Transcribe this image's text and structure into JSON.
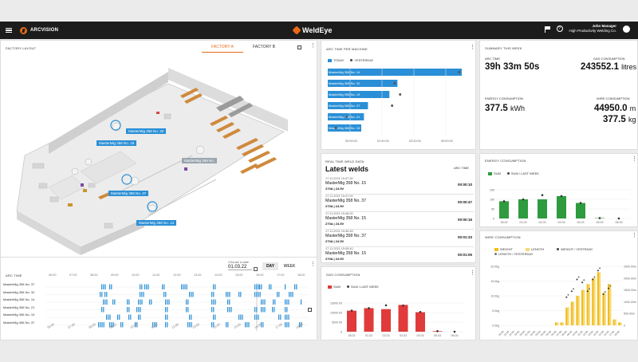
{
  "header": {
    "brand": "ARCVISION",
    "app_logo": "WeldEye",
    "user_name": "John Manager",
    "user_company": "High Productivity Welding Co.",
    "help_label": "?"
  },
  "factory": {
    "title": "FACTORY LAYOUT",
    "tabs": [
      "FACTORY A",
      "FACTORY B"
    ],
    "active_tab": "FACTORY A",
    "machine_labels": [
      "MasterMig 358 No. 32",
      "MasterMig 358 No. 19",
      "MasterMig 358 No.",
      "MasterMig 358 No. 37",
      "MasterMig 358 No. 14"
    ]
  },
  "arc_timeline": {
    "title": "ARC TIME",
    "date_label": "Choose a date",
    "date_value": "01.03.22",
    "day_btn": "DAY",
    "week_btn": "WEEK",
    "hours": [
      "06:00",
      "07:00",
      "08:00",
      "09:00",
      "10:00",
      "11:00",
      "12:00",
      "13:00",
      "14:00",
      "15:00",
      "16:00",
      "17:00",
      "18:00"
    ],
    "rows": [
      "MasterMig 358 No. 37",
      "MasterMig 358 No. 32",
      "MasterMig 358 No. 14",
      "MasterMig 358 No. 21",
      "MasterMig 358 No. 19",
      "MasterMig 358 No. 37"
    ],
    "accent": "#2a8fd6"
  },
  "arc_per_machine": {
    "title": "ARC TIME PER MACHINE",
    "legend": [
      "TODAY",
      "YESTERDAY"
    ],
    "machines": [
      "MasterMig 358 No. 14",
      "MasterMig 358 No. 32",
      "MasterMig 358 No. 19",
      "MasterMig 358 No. 37",
      "MasterMig 358 No. 21",
      "MasterMig 358 No. 15"
    ],
    "ticks": [
      "00:00:00",
      "01:40:00",
      "03:20:00",
      "05:00:00"
    ]
  },
  "latest_welds": {
    "section": "REAL TIME WELD DATA",
    "title": "Latest welds",
    "col": "ARC TIME",
    "rows": [
      {
        "time": "17.11.2021 15:47:30",
        "machine": "MasterMig 358 No. 15",
        "settings": "270A | 24.5V",
        "duration": "00:00:10"
      },
      {
        "time": "17.11.2021 15:47:00",
        "machine": "MasterMig 358 No. 37",
        "settings": "270A | 24.5V",
        "duration": "00:00:47"
      },
      {
        "time": "17.11.2021 15:46:00",
        "machine": "MasterMig 358 No. 15",
        "settings": "270A | 24.5V",
        "duration": "00:00:16"
      },
      {
        "time": "17.11.2021 15:46:46",
        "machine": "MasterMig 358 No. 37",
        "settings": "270A | 24.5V",
        "duration": "00:01:33"
      },
      {
        "time": "17.11.2021 15:45:40",
        "machine": "MasterMig 358 No. 15",
        "settings": "270A | 24.5V",
        "duration": "00:01:05"
      }
    ]
  },
  "summary": {
    "title": "SUMMARY THIS WEEK",
    "arc_time_label": "ARC TIME",
    "arc_time_value": "39h 33m 50s",
    "gas_label": "GAS CONSUMPTION",
    "gas_value": "243552.1",
    "gas_unit": "litres",
    "energy_label": "ENERGY CONSUMPTION",
    "energy_value": "377.5",
    "energy_unit": "kWh",
    "wire_label": "WIRE CONSUMPTION",
    "wire_len_value": "44950.0",
    "wire_len_unit": "m",
    "wire_weight_value": "377.5",
    "wire_weight_unit": "kg"
  },
  "chart_data": [
    {
      "type": "bar",
      "title": "ARC TIME PER MACHINE",
      "orientation": "horizontal",
      "categories": [
        "MasterMig 358 No. 14",
        "MasterMig 358 No. 32",
        "MasterMig 358 No. 19",
        "MasterMig 358 No. 37",
        "MasterMig 358 No. 21",
        "MasterMig 358 No. 15"
      ],
      "series": [
        {
          "name": "TODAY",
          "values": [
            5.0,
            2.6,
            2.3,
            1.5,
            1.35,
            1.25
          ],
          "color": "#2a8fd6"
        },
        {
          "name": "YESTERDAY",
          "values": [
            4.9,
            2.5,
            2.7,
            2.4,
            0.7,
            0.3
          ],
          "color": "#555555"
        }
      ],
      "value_unit": "hours",
      "xlim": [
        0,
        5
      ]
    },
    {
      "type": "bar",
      "title": "GAS CONSUMPTION",
      "categories": [
        "28.02",
        "01.03",
        "02.03",
        "03.03",
        "04.03",
        "05.03",
        "06.03"
      ],
      "series": [
        {
          "name": "SUM",
          "values": [
            11000,
            12300,
            11800,
            14000,
            10200,
            300,
            0
          ],
          "color": "#e03a3a"
        },
        {
          "name": "SUM / LAST WEEK",
          "values": [
            11000,
            12300,
            13800,
            13700,
            10300,
            300,
            0
          ],
          "color": "#333333"
        }
      ],
      "yticks": [
        "0",
        "5000.00",
        "10000.00",
        "15000.00"
      ],
      "ylim": [
        0,
        15000
      ]
    },
    {
      "type": "bar",
      "title": "ENERGY CONSUMPTION",
      "categories": [
        "28.02",
        "01.03",
        "02.03",
        "03.03",
        "04.03",
        "05.03",
        "06.03"
      ],
      "series": [
        {
          "name": "SUM",
          "values": [
            90,
            100,
            100,
            117,
            81,
            2,
            0
          ],
          "color": "#2e9b3e"
        },
        {
          "name": "SUM / LAST WEEK",
          "values": [
            90,
            100,
            122,
            117,
            81,
            2,
            0
          ],
          "color": "#333333"
        }
      ],
      "yticks": [
        "0",
        "50",
        "100",
        "150"
      ],
      "ylim": [
        0,
        150
      ]
    },
    {
      "type": "bar",
      "title": "WIRE CONSUMPTION",
      "categories": [
        "20:00",
        "21:00",
        "22:00",
        "23:00",
        "00:00",
        "01:00",
        "02:00",
        "03:00",
        "04:00",
        "05:00",
        "06:00",
        "07:00",
        "08:00",
        "09:00",
        "10:00",
        "11:00",
        "12:00",
        "13:00",
        "14:00",
        "15:00",
        "16:00",
        "17:00",
        "18:00"
      ],
      "series": [
        {
          "name": "WEIGHT",
          "values": [
            0,
            0,
            0,
            0,
            0,
            0,
            0,
            0,
            0,
            0,
            1,
            1,
            6,
            8,
            10,
            12,
            14,
            16,
            18,
            11,
            14,
            2,
            1
          ],
          "color": "#f2bd1c"
        },
        {
          "name": "LENGTH",
          "values": [
            0,
            0,
            0,
            0,
            0,
            0,
            0,
            0,
            0,
            0,
            120,
            120,
            740,
            960,
            1200,
            1440,
            1680,
            1920,
            2160,
            1320,
            1680,
            240,
            120
          ],
          "color": "#f7d873"
        },
        {
          "name": "WEIGHT / YESTERDAY",
          "values": [
            0,
            0,
            0,
            0,
            0,
            0,
            0,
            0,
            0,
            0,
            0,
            0,
            9,
            11,
            15,
            14,
            11,
            15,
            18,
            10,
            12,
            0,
            0
          ],
          "color": "#333333"
        },
        {
          "name": "LENGTH / YESTERDAY",
          "values": [
            0,
            0,
            0,
            0,
            0,
            0,
            0,
            0,
            0,
            0,
            0,
            0,
            1080,
            1320,
            1800,
            1680,
            1320,
            1800,
            2160,
            1200,
            1440,
            0,
            0
          ],
          "color": "#777777"
        }
      ],
      "yticks_left": [
        "0.0kg",
        "5.0kg",
        "10.0kg",
        "15.0kg",
        "20.0kg"
      ],
      "yticks_right": [
        "0",
        "500.00m",
        "1000.00m",
        "1500.00m",
        "2000.00m",
        "2500.00m"
      ],
      "ylim": [
        0,
        20
      ]
    }
  ],
  "gas_chart": {
    "title": "GAS CONSUMPTION",
    "legend": [
      "SUM",
      "SUM / LAST WEEK"
    ]
  },
  "energy_chart": {
    "title": "ENERGY CONSUMPTION",
    "legend": [
      "SUM",
      "SUM / LAST WEEK"
    ]
  },
  "wire_chart": {
    "title": "WIRE CONSUMPTION",
    "legend": [
      "WEIGHT",
      "LENGTH",
      "WEIGHT / YESTEDAY",
      "LENGTH / YESTERDAY"
    ]
  }
}
